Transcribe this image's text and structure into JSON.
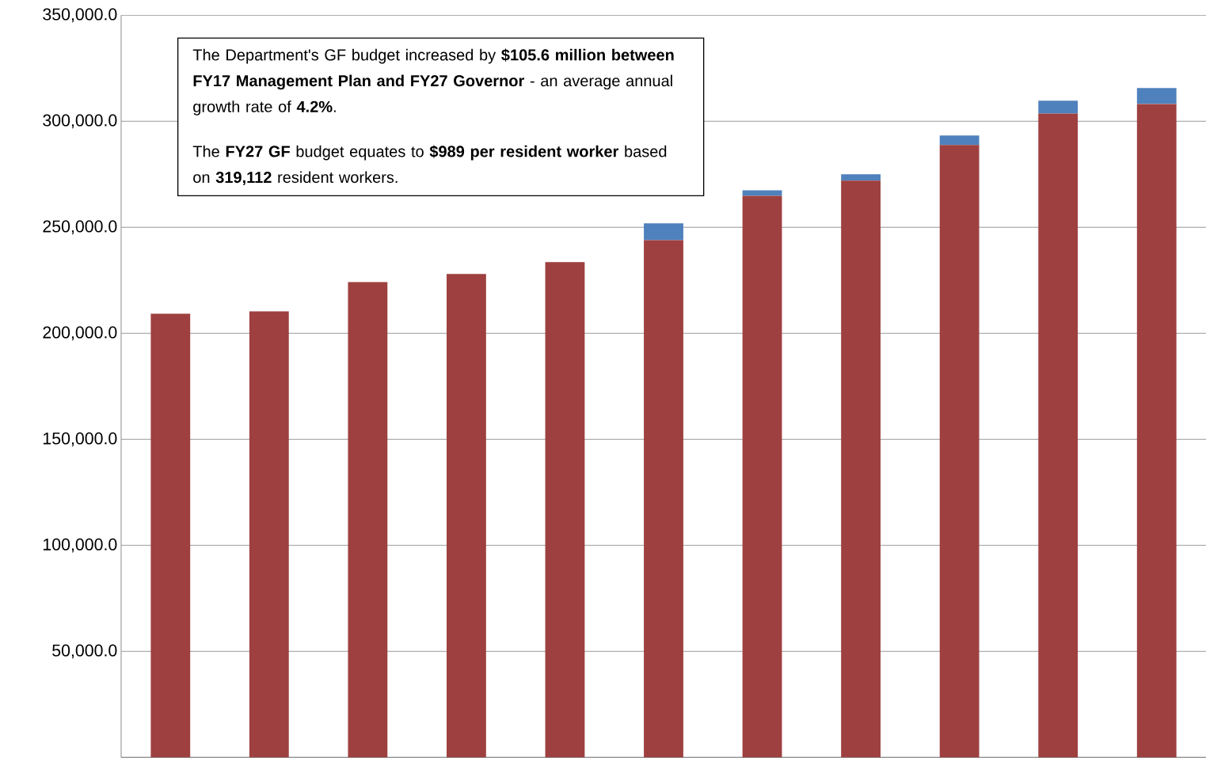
{
  "chart_data": {
    "type": "bar",
    "stacked": true,
    "categories": [
      null,
      null,
      null,
      null,
      null,
      null,
      null,
      null,
      null,
      null,
      null
    ],
    "series": [
      {
        "color": "#9e4040",
        "values": [
          209300,
          210400,
          224200,
          228000,
          233600,
          244000,
          264900,
          272000,
          288800,
          303700,
          308200
        ]
      },
      {
        "color": "#4f81bd",
        "values": [
          0,
          0,
          0,
          0,
          0,
          7900,
          2600,
          3000,
          4500,
          6000,
          7500
        ]
      }
    ],
    "ylim": [
      0,
      350000
    ],
    "yticks": [
      {
        "value": 0,
        "label": null
      },
      {
        "value": 50000,
        "label": "50,000.0"
      },
      {
        "value": 100000,
        "label": "100,000.0"
      },
      {
        "value": 150000,
        "label": "150,000.0"
      },
      {
        "value": 200000,
        "label": "200,000.0"
      },
      {
        "value": 250000,
        "label": "250,000.0"
      },
      {
        "value": 300000,
        "label": "300,000.0"
      },
      {
        "value": 350000,
        "label": "350,000.0"
      }
    ],
    "grid": "y",
    "annotations": [
      "The Department's GF budget increased by **$105.6 million between FY17 Management Plan and FY27 Governor** - an average annual growth rate of **4.2%**.",
      "The **FY27 GF** budget equates to **$989 per resident worker** based on **319,112** resident workers."
    ]
  }
}
